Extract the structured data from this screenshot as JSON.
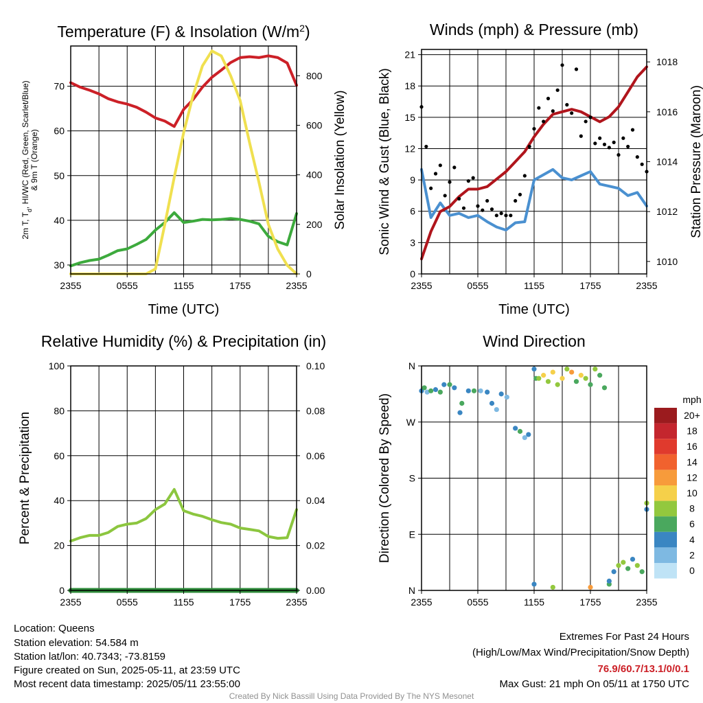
{
  "chart_data": [
    {
      "type": "line",
      "title": "Temperature (F) & Insolation (W/m²)",
      "xlabel": "Time (UTC)",
      "ylabel": "2m T, T_d, HI/WC (Red, Green, Scarlet/Blue) & 9m T (Orange)",
      "ylabel_right": "Solar Insolation (Yellow)",
      "x_ticks": [
        "2355",
        "0555",
        "1155",
        "1755",
        "2355"
      ],
      "ylim": [
        28,
        79
      ],
      "y_ticks": [
        30,
        40,
        50,
        60,
        70
      ],
      "ylim_right": [
        0,
        920
      ],
      "y_ticks_right": [
        0,
        200,
        400,
        600,
        800
      ],
      "grid": true,
      "series": [
        {
          "color": "#cc2027",
          "axis": "left",
          "x": [
            0,
            1,
            2,
            3,
            4,
            5,
            6,
            7,
            8,
            9,
            10,
            11,
            12,
            13,
            14,
            15,
            16,
            17,
            18,
            19,
            20,
            21,
            22,
            23,
            24
          ],
          "values": [
            70.8,
            69.8,
            69.1,
            68.3,
            67.2,
            66.5,
            66.0,
            65.3,
            64.2,
            62.9,
            62.2,
            61.0,
            64.8,
            67.0,
            69.8,
            72.0,
            73.6,
            75.3,
            76.4,
            76.6,
            76.4,
            76.8,
            76.4,
            75.2,
            70.2
          ]
        },
        {
          "color": "#3daa3d",
          "axis": "left",
          "x": [
            0,
            1,
            2,
            3,
            4,
            5,
            6,
            7,
            8,
            9,
            10,
            11,
            12,
            13,
            14,
            15,
            16,
            17,
            18,
            19,
            20,
            21,
            22,
            23,
            24
          ],
          "values": [
            29.8,
            30.5,
            31.0,
            31.3,
            32.2,
            33.2,
            33.6,
            34.6,
            35.7,
            37.8,
            39.5,
            41.7,
            39.5,
            39.8,
            40.2,
            40.1,
            40.2,
            40.4,
            40.2,
            39.8,
            39.2,
            36.4,
            35.2,
            34.5,
            41.5
          ]
        },
        {
          "color": "#f0e050",
          "axis": "right",
          "x": [
            0,
            1,
            2,
            3,
            4,
            5,
            6,
            7,
            8,
            9,
            10,
            11,
            12,
            13,
            14,
            15,
            16,
            17,
            18,
            19,
            20,
            21,
            22,
            23,
            24
          ],
          "values": [
            0,
            0,
            0,
            0,
            0,
            0,
            0,
            0,
            0,
            20,
            200,
            390,
            570,
            720,
            840,
            900,
            880,
            800,
            700,
            530,
            370,
            200,
            100,
            35,
            0
          ]
        }
      ]
    },
    {
      "type": "line",
      "title": "Winds (mph) & Pressure (mb)",
      "xlabel": "Time (UTC)",
      "ylabel": "Sonic Wind & Gust (Blue, Black)",
      "ylabel_right": "Station Pressure (Maroon)",
      "x_ticks": [
        "2355",
        "0555",
        "1155",
        "1755",
        "2355"
      ],
      "ylim": [
        0,
        21.5
      ],
      "y_ticks": [
        0,
        3,
        6,
        9,
        12,
        15,
        18,
        21
      ],
      "ylim_right": [
        1009.5,
        1018.5
      ],
      "y_ticks_right": [
        1010,
        1012,
        1014,
        1016,
        1018
      ],
      "grid": true,
      "series": [
        {
          "color": "#4a90d0",
          "axis": "left",
          "x": [
            0,
            1,
            2,
            3,
            4,
            5,
            6,
            7,
            8,
            9,
            10,
            11,
            12,
            13,
            14,
            15,
            16,
            17,
            18,
            19,
            20,
            21,
            22,
            23,
            24
          ],
          "values": [
            10.0,
            5.4,
            6.8,
            5.6,
            5.8,
            5.4,
            5.6,
            5.0,
            4.5,
            4.2,
            4.9,
            5.0,
            9.0,
            9.5,
            10.0,
            9.2,
            9.0,
            9.4,
            9.8,
            8.6,
            8.4,
            8.2,
            7.5,
            7.8,
            6.5
          ]
        },
        {
          "color": "#b0151c",
          "axis": "right",
          "x": [
            0,
            1,
            2,
            3,
            4,
            5,
            6,
            7,
            8,
            9,
            10,
            11,
            12,
            13,
            14,
            15,
            16,
            17,
            18,
            19,
            20,
            21,
            22,
            23,
            24
          ],
          "values": [
            1010.1,
            1011.2,
            1012.0,
            1012.2,
            1012.6,
            1012.9,
            1012.9,
            1013.0,
            1013.3,
            1013.6,
            1014.0,
            1014.4,
            1015.0,
            1015.5,
            1015.9,
            1016.0,
            1016.1,
            1016.0,
            1015.8,
            1015.6,
            1015.8,
            1016.2,
            1016.8,
            1017.4,
            1017.8
          ]
        },
        {
          "type": "scatter",
          "color": "#000000",
          "axis": "left",
          "x": [
            0,
            0.5,
            1,
            1.5,
            2,
            2.5,
            3,
            3.5,
            4,
            4.5,
            5,
            5.5,
            6,
            6.5,
            7,
            7.5,
            8,
            8.5,
            9,
            9.5,
            10,
            10.5,
            11,
            11.5,
            12,
            12.5,
            13,
            13.5,
            14,
            14.5,
            15,
            15.5,
            16,
            16.5,
            17,
            17.5,
            18,
            18.5,
            19,
            19.5,
            20,
            20.5,
            21,
            21.5,
            22,
            22.5,
            23,
            23.5,
            24
          ],
          "values": [
            16.0,
            12.2,
            8.2,
            9.6,
            10.4,
            7.5,
            8.8,
            10.2,
            7.2,
            6.3,
            8.9,
            9.2,
            6.5,
            6.1,
            7.0,
            6.2,
            5.6,
            5.8,
            5.6,
            5.6,
            7.0,
            7.6,
            9.4,
            12.2,
            13.9,
            15.9,
            14.6,
            16.8,
            15.6,
            17.6,
            20.0,
            16.2,
            15.4,
            19.6,
            13.2,
            14.6,
            15.0,
            12.5,
            13.0,
            12.4,
            12.1,
            12.6,
            11.4,
            13.0,
            12.2,
            13.8,
            11.2,
            10.5,
            9.8
          ]
        }
      ]
    },
    {
      "type": "line",
      "title": "Relative Humidity (%) & Precipitation (in)",
      "ylabel": "Percent & Precipitation",
      "x_ticks": [
        "2355",
        "0555",
        "1155",
        "1755",
        "2355"
      ],
      "ylim": [
        0,
        100
      ],
      "y_ticks": [
        0,
        20,
        40,
        60,
        80,
        100
      ],
      "ylim_right": [
        0,
        0.1
      ],
      "y_ticks_right": [
        "0.00",
        "0.02",
        "0.04",
        "0.06",
        "0.08",
        "0.10"
      ],
      "grid": true,
      "series": [
        {
          "color": "#8cc63f",
          "axis": "left",
          "x": [
            0,
            1,
            2,
            3,
            4,
            5,
            6,
            7,
            8,
            9,
            10,
            11,
            12,
            13,
            14,
            15,
            16,
            17,
            18,
            19,
            20,
            21,
            22,
            23,
            24
          ],
          "values": [
            22,
            23.5,
            24.5,
            24.5,
            25.8,
            28.5,
            29.5,
            30.0,
            32.0,
            36.0,
            38.5,
            45.0,
            35.5,
            34.0,
            33.0,
            31.5,
            30.2,
            29.5,
            27.8,
            27.2,
            26.5,
            24.0,
            23.2,
            23.5,
            36.0
          ]
        },
        {
          "color": "#2e8b3a",
          "axis": "right",
          "x": [
            0,
            24
          ],
          "values": [
            0.0,
            0.0
          ]
        }
      ]
    },
    {
      "type": "scatter",
      "title": "Wind Direction",
      "ylabel": "Direction (Colored By Speed)",
      "x_ticks": [
        "2355",
        "0555",
        "1155",
        "1755",
        "2355"
      ],
      "y_ticks": [
        "N",
        "E",
        "S",
        "W",
        "N"
      ],
      "y_tick_degrees": [
        0,
        90,
        180,
        270,
        360
      ],
      "ylim": [
        0,
        360
      ],
      "grid": true,
      "colorbar": {
        "title": "mph",
        "labels": [
          "20+",
          "18",
          "16",
          "14",
          "12",
          "10",
          "8",
          "6",
          "4",
          "2",
          "0"
        ],
        "colors": [
          "#9b1b1e",
          "#c4262e",
          "#e03a2d",
          "#f1622e",
          "#f79b3b",
          "#f5d04a",
          "#93c83e",
          "#4aa85e",
          "#3a86c2",
          "#7eb9e2",
          "#bfe3f6"
        ]
      },
      "points": [
        [
          0,
          320,
          4
        ],
        [
          0.3,
          325,
          6
        ],
        [
          0.6,
          318,
          2
        ],
        [
          1.0,
          320,
          6
        ],
        [
          1.5,
          322,
          4
        ],
        [
          2.0,
          318,
          6
        ],
        [
          2.4,
          330,
          4
        ],
        [
          3.0,
          330,
          6
        ],
        [
          3.5,
          325,
          4
        ],
        [
          4.1,
          285,
          4
        ],
        [
          4.3,
          300,
          6
        ],
        [
          5.0,
          320,
          4
        ],
        [
          5.6,
          320,
          6
        ],
        [
          6.3,
          320,
          2
        ],
        [
          7.0,
          318,
          4
        ],
        [
          7.5,
          300,
          4
        ],
        [
          8.0,
          290,
          2
        ],
        [
          8.5,
          315,
          4
        ],
        [
          9.1,
          310,
          2
        ],
        [
          10.0,
          260,
          4
        ],
        [
          10.5,
          255,
          6
        ],
        [
          11.0,
          245,
          2
        ],
        [
          11.4,
          250,
          4
        ],
        [
          12.0,
          355,
          4
        ],
        [
          12.2,
          340,
          6
        ],
        [
          12.5,
          340,
          8
        ],
        [
          13.0,
          345,
          10
        ],
        [
          13.5,
          335,
          8
        ],
        [
          14.0,
          350,
          10
        ],
        [
          14.5,
          330,
          8
        ],
        [
          15.0,
          340,
          10
        ],
        [
          15.5,
          355,
          8
        ],
        [
          16.0,
          350,
          12
        ],
        [
          16.5,
          335,
          6
        ],
        [
          17.0,
          345,
          10
        ],
        [
          17.5,
          340,
          8
        ],
        [
          18.0,
          330,
          6
        ],
        [
          18.5,
          355,
          8
        ],
        [
          19.0,
          345,
          6
        ],
        [
          19.5,
          325,
          6
        ],
        [
          20.0,
          10,
          6
        ],
        [
          20.5,
          30,
          4
        ],
        [
          21.0,
          40,
          8
        ],
        [
          21.5,
          45,
          8
        ],
        [
          22.0,
          35,
          6
        ],
        [
          22.5,
          50,
          4
        ],
        [
          23.0,
          40,
          8
        ],
        [
          23.5,
          30,
          6
        ],
        [
          24.0,
          130,
          4
        ],
        [
          24.0,
          140,
          8
        ],
        [
          12.0,
          10,
          4
        ],
        [
          14.0,
          5,
          8
        ],
        [
          18.0,
          5,
          12
        ],
        [
          20.0,
          15,
          4
        ]
      ]
    }
  ],
  "info": {
    "location": "Location: Queens",
    "elevation": "Station elevation: 54.584 m",
    "latlon": "Station lat/lon: 40.7343; -73.8159",
    "created": "Figure created on Sun, 2025-05-11, at 23:59 UTC",
    "recent": "Most recent data timestamp: 2025/05/11 23:55:00"
  },
  "extremes": {
    "title": "Extremes For Past 24 Hours",
    "subtitle": "(High/Low/Max Wind/Precipitation/Snow Depth)",
    "values": "76.9/60.7/13.1/0/0.1",
    "gust": "Max Gust: 21 mph On 05/11 at 1750 UTC"
  },
  "credit": "Created By Nick Bassill Using Data Provided By The NYS Mesonet"
}
